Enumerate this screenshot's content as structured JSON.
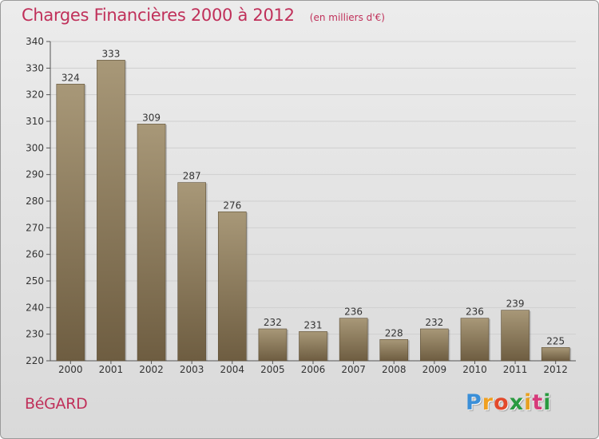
{
  "header": {
    "title": "Charges Financières 2000 à 2012",
    "subtitle": "(en milliers d'€)"
  },
  "footer": {
    "commune": "BéGARD",
    "logo": {
      "text": "Proxiti",
      "letter_colors": [
        "#3a8fd8",
        "#f0a020",
        "#e34a2b",
        "#2a9a40",
        "#e8a020",
        "#d63a7a",
        "#2a9a40"
      ]
    }
  },
  "colors": {
    "bar_top": "#a89878",
    "bar_bottom": "#6e5d41",
    "title": "#c0305a",
    "grid": "#cfcfcf"
  },
  "chart_data": {
    "type": "bar",
    "categories": [
      "2000",
      "2001",
      "2002",
      "2003",
      "2004",
      "2005",
      "2006",
      "2007",
      "2008",
      "2009",
      "2010",
      "2011",
      "2012"
    ],
    "values": [
      324,
      333,
      309,
      287,
      276,
      232,
      231,
      236,
      228,
      232,
      236,
      239,
      225
    ],
    "title": "Charges Financières 2000 à 2012",
    "subtitle": "(en milliers d'€)",
    "ylim": [
      220,
      340
    ],
    "yticks": [
      220,
      230,
      240,
      250,
      260,
      270,
      280,
      290,
      300,
      310,
      320,
      330,
      340
    ],
    "grid": true
  }
}
